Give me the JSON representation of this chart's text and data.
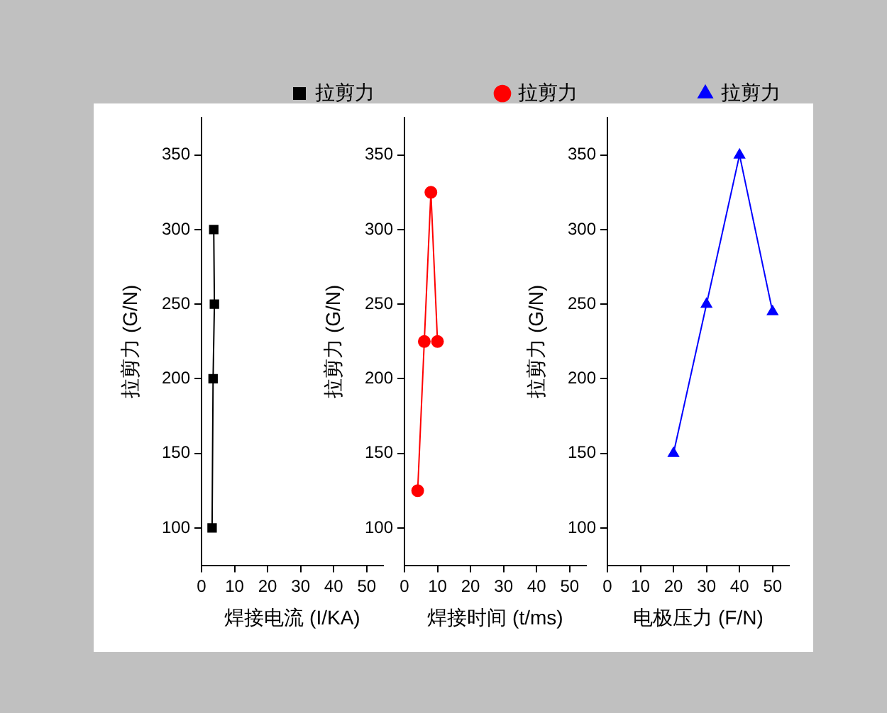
{
  "chart_data": [
    {
      "type": "line",
      "x": [
        3.2,
        3.5,
        3.9,
        3.7
      ],
      "xlabel": "焊接电流 (I/KA)",
      "ylabel": "拉剪力 (G/N)",
      "xlim": [
        0,
        55
      ],
      "xticks": [
        0,
        10,
        20,
        30,
        40,
        50
      ],
      "ylim": [
        75,
        375
      ],
      "yticks": [
        100,
        150,
        200,
        250,
        300,
        350
      ],
      "legend": "top right",
      "marker": "square",
      "grid": false,
      "series": [
        {
          "name": "拉剪力",
          "color": "#000000",
          "values": [
            100,
            200,
            250,
            300
          ]
        }
      ]
    },
    {
      "type": "line",
      "x": [
        4,
        6,
        8,
        10
      ],
      "xlabel": "焊接时间 (t/ms)",
      "ylabel": "拉剪力 (G/N)",
      "xlim": [
        0,
        55
      ],
      "xticks": [
        0,
        10,
        20,
        30,
        40,
        50
      ],
      "ylim": [
        75,
        375
      ],
      "yticks": [
        100,
        150,
        200,
        250,
        300,
        350
      ],
      "legend": "top right",
      "marker": "circle",
      "grid": false,
      "series": [
        {
          "name": "拉剪力",
          "color": "#ff0000",
          "values": [
            125,
            225,
            325,
            225
          ]
        }
      ]
    },
    {
      "type": "line",
      "x": [
        20,
        30,
        40,
        50
      ],
      "xlabel": "电极压力 (F/N)",
      "ylabel": "拉剪力 (G/N)",
      "xlim": [
        0,
        55
      ],
      "xticks": [
        0,
        10,
        20,
        30,
        40,
        50
      ],
      "ylim": [
        75,
        375
      ],
      "yticks": [
        100,
        150,
        200,
        250,
        300,
        350
      ],
      "legend": "top right",
      "marker": "triangle",
      "grid": false,
      "series": [
        {
          "name": "拉剪力",
          "color": "#0000ff",
          "values": [
            150,
            250,
            350,
            245
          ]
        }
      ]
    }
  ]
}
